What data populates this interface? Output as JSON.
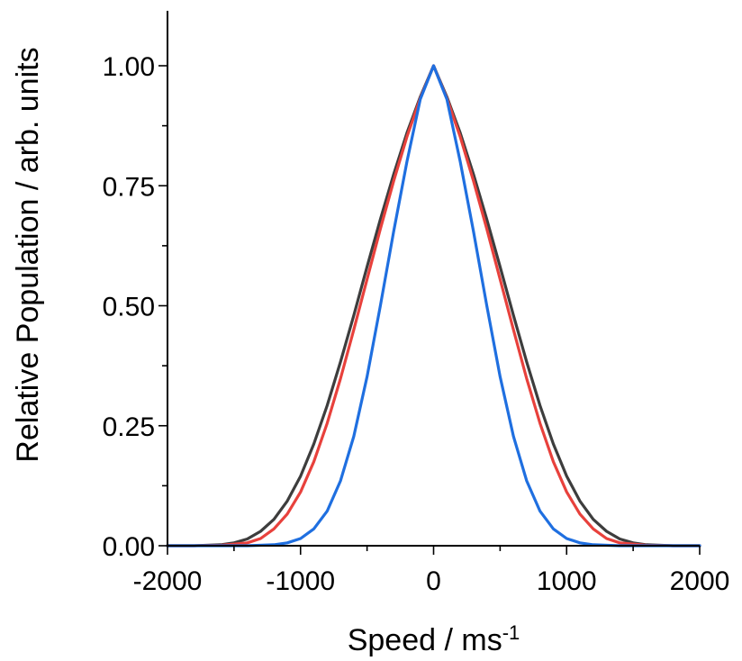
{
  "chart_data": {
    "type": "line",
    "xlabel_main": "Speed / ms",
    "xlabel_sup": "-1",
    "ylabel": "Relative Population / arb. units",
    "xlim": [
      -2000,
      2000
    ],
    "ylim": [
      0,
      1.12
    ],
    "x_ticks": [
      {
        "value": -2000,
        "label": "-2000"
      },
      {
        "value": -1000,
        "label": "-1000"
      },
      {
        "value": 0,
        "label": "0"
      },
      {
        "value": 1000,
        "label": "1000"
      },
      {
        "value": 2000,
        "label": "2000"
      }
    ],
    "y_ticks": [
      {
        "value": 0,
        "label": "0.00"
      },
      {
        "value": 0.25,
        "label": "0.25"
      },
      {
        "value": 0.5,
        "label": "0.50"
      },
      {
        "value": 0.75,
        "label": "0.75"
      },
      {
        "value": 1.0,
        "label": "1.00"
      }
    ],
    "x_minor_step": 500,
    "y_minor_step": 0.125,
    "grid": false,
    "series": [
      {
        "color": "#3d3d3d",
        "x": [
          -2000,
          -1800,
          -1600,
          -1500,
          -1400,
          -1300,
          -1200,
          -1100,
          -1000,
          -900,
          -800,
          -700,
          -600,
          -500,
          -400,
          -300,
          -200,
          -100,
          0,
          100,
          200,
          300,
          400,
          500,
          600,
          700,
          800,
          900,
          1000,
          1100,
          1200,
          1300,
          1400,
          1500,
          1600,
          1800,
          2000
        ],
        "values": [
          0,
          0,
          0.002,
          0.006,
          0.014,
          0.03,
          0.055,
          0.093,
          0.145,
          0.212,
          0.292,
          0.383,
          0.48,
          0.581,
          0.68,
          0.774,
          0.86,
          0.935,
          1.0,
          0.935,
          0.86,
          0.774,
          0.68,
          0.581,
          0.48,
          0.383,
          0.292,
          0.212,
          0.145,
          0.093,
          0.055,
          0.03,
          0.014,
          0.006,
          0.002,
          0,
          0
        ]
      },
      {
        "color": "#e8413c",
        "x": [
          -2000,
          -1800,
          -1600,
          -1400,
          -1300,
          -1200,
          -1100,
          -1000,
          -900,
          -800,
          -700,
          -600,
          -500,
          -400,
          -300,
          -200,
          -100,
          0,
          100,
          200,
          300,
          400,
          500,
          600,
          700,
          800,
          900,
          1000,
          1100,
          1200,
          1300,
          1400,
          1600,
          1800,
          2000
        ],
        "values": [
          0,
          0,
          0.001,
          0.006,
          0.015,
          0.035,
          0.066,
          0.112,
          0.175,
          0.255,
          0.348,
          0.45,
          0.555,
          0.66,
          0.76,
          0.852,
          0.932,
          1.0,
          0.932,
          0.852,
          0.76,
          0.66,
          0.555,
          0.45,
          0.348,
          0.255,
          0.175,
          0.112,
          0.066,
          0.035,
          0.015,
          0.006,
          0.001,
          0,
          0
        ]
      },
      {
        "color": "#1f6fe0",
        "x": [
          -2000,
          -1600,
          -1400,
          -1200,
          -1100,
          -1000,
          -900,
          -800,
          -700,
          -600,
          -500,
          -400,
          -300,
          -200,
          -100,
          0,
          100,
          200,
          300,
          400,
          500,
          600,
          700,
          800,
          900,
          1000,
          1100,
          1200,
          1400,
          1600,
          2000
        ],
        "values": [
          0,
          0,
          0,
          0.002,
          0.006,
          0.015,
          0.035,
          0.072,
          0.135,
          0.228,
          0.352,
          0.5,
          0.655,
          0.8,
          0.93,
          1.0,
          0.93,
          0.8,
          0.655,
          0.5,
          0.352,
          0.228,
          0.135,
          0.072,
          0.035,
          0.015,
          0.006,
          0.002,
          0,
          0,
          0
        ]
      }
    ]
  }
}
